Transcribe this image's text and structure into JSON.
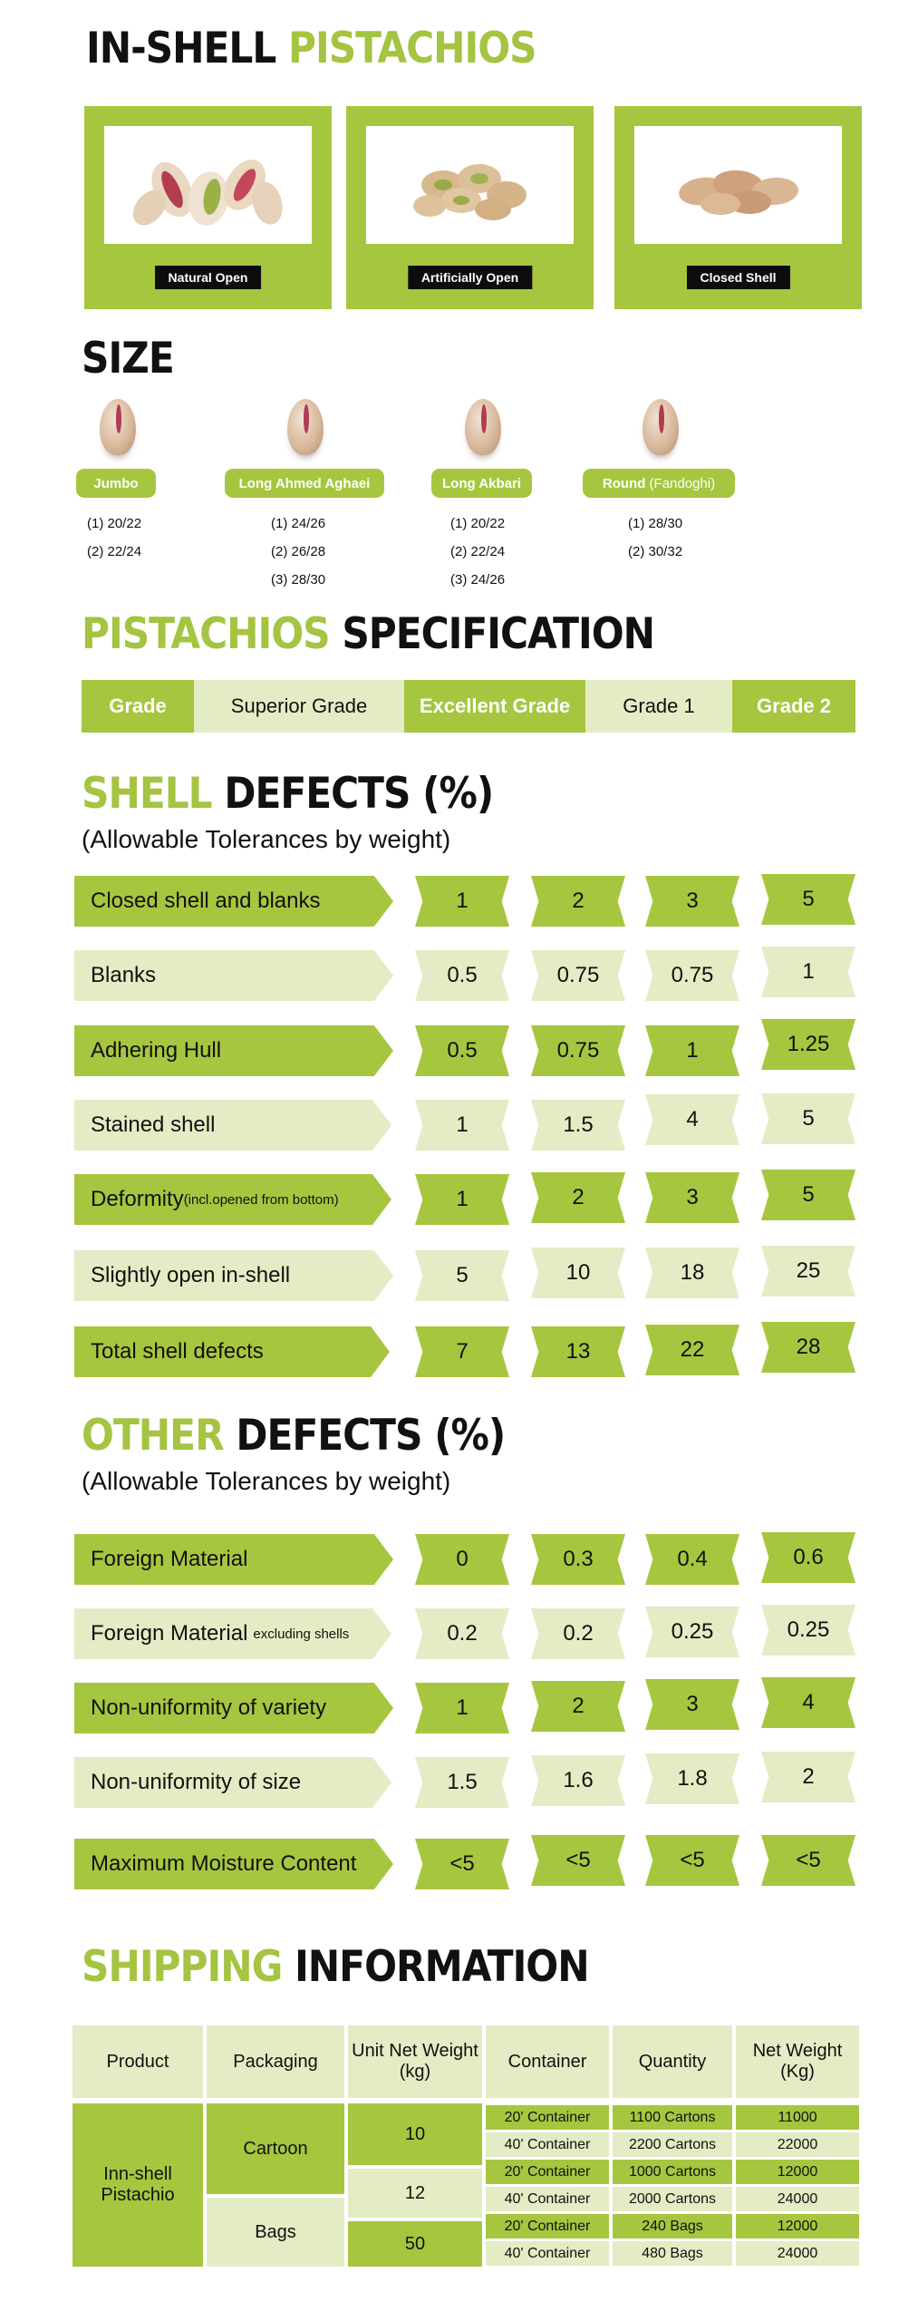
{
  "in_shell": {
    "title_a": "IN-SHELL",
    "title_b": "PISTACHIOS",
    "cards": [
      "Natural Open",
      "Artificially Open",
      "Closed Shell"
    ]
  },
  "size": {
    "title": "SIZE",
    "items": [
      {
        "label": "Jumbo",
        "label_paren": "",
        "sizes": [
          "(1) 20/22",
          "(2) 22/24"
        ]
      },
      {
        "label": "Long Ahmed Aghaei",
        "label_paren": "",
        "sizes": [
          "(1) 24/26",
          "(2) 26/28",
          "(3) 28/30"
        ]
      },
      {
        "label": "Long Akbari",
        "label_paren": "",
        "sizes": [
          "(1) 20/22",
          "(2) 22/24",
          "(3) 24/26"
        ]
      },
      {
        "label": "Round",
        "label_paren": "(Fandoghi)",
        "sizes": [
          "(1) 28/30",
          "(2) 30/32"
        ]
      }
    ]
  },
  "spec": {
    "title_a": "PISTACHIOS",
    "title_b": "SPECIFICATION",
    "grades": [
      "Grade",
      "Superior Grade",
      "Excellent Grade",
      "Grade 1",
      "Grade 2"
    ]
  },
  "shell_defects": {
    "title_a": "SHELL",
    "title_b": "DEFECTS (%)",
    "subtitle": "(Allowable Tolerances by weight)",
    "rows": [
      {
        "label": "Closed shell and blanks",
        "small": "",
        "values": [
          "1",
          "2",
          "3",
          "5"
        ]
      },
      {
        "label": "Blanks",
        "small": "",
        "values": [
          "0.5",
          "0.75",
          "0.75",
          "1"
        ]
      },
      {
        "label": "Adhering Hull",
        "small": "",
        "values": [
          "0.5",
          "0.75",
          "1",
          "1.25"
        ]
      },
      {
        "label": "Stained shell",
        "small": "",
        "values": [
          "1",
          "1.5",
          "4",
          "5"
        ]
      },
      {
        "label": "Deformity",
        "small": "(incl.opened from bottom)",
        "values": [
          "1",
          "2",
          "3",
          "5"
        ]
      },
      {
        "label": "Slightly open in-shell",
        "small": "",
        "values": [
          "5",
          "10",
          "18",
          "25"
        ]
      },
      {
        "label": "Total shell defects",
        "small": "",
        "values": [
          "7",
          "13",
          "22",
          "28"
        ]
      }
    ]
  },
  "other_defects": {
    "title_a": "OTHER",
    "title_b": "DEFECTS (%)",
    "subtitle": "(Allowable Tolerances by weight)",
    "rows": [
      {
        "label": "Foreign Material",
        "small": "",
        "values": [
          "0",
          "0.3",
          "0.4",
          "0.6"
        ]
      },
      {
        "label": "Foreign Material",
        "small": "excluding shells",
        "values": [
          "0.2",
          "0.2",
          "0.25",
          "0.25"
        ]
      },
      {
        "label": "Non-uniformity of variety",
        "small": "",
        "values": [
          "1",
          "2",
          "3",
          "4"
        ]
      },
      {
        "label": "Non-uniformity of size",
        "small": "",
        "values": [
          "1.5",
          "1.6",
          "1.8",
          "2"
        ]
      },
      {
        "label": "Maximum Moisture Content",
        "small": "",
        "values": [
          "<5",
          "<5",
          "<5",
          "<5"
        ]
      }
    ]
  },
  "shipping": {
    "title_a": "SHIPPING",
    "title_b": "INFORMATION",
    "headers": [
      "Product",
      "Packaging",
      "Unit Net Weight (kg)",
      "Container",
      "Quantity",
      "Net Weight (Kg)"
    ],
    "product": "Inn-shell Pistachio",
    "packaging": [
      "Cartoon",
      "Bags"
    ],
    "unit_weights": [
      "10",
      "12",
      "50"
    ],
    "rows": [
      {
        "container": "20' Container",
        "quantity": "1100 Cartons",
        "net": "11000"
      },
      {
        "container": "40' Container",
        "quantity": "2200 Cartons",
        "net": "22000"
      },
      {
        "container": "20' Container",
        "quantity": "1000 Cartons",
        "net": "12000"
      },
      {
        "container": "40' Container",
        "quantity": "2000 Cartons",
        "net": "24000"
      },
      {
        "container": "20' Container",
        "quantity": "240 Bags",
        "net": "12000"
      },
      {
        "container": "40' Container",
        "quantity": "480 Bags",
        "net": "24000"
      }
    ]
  }
}
